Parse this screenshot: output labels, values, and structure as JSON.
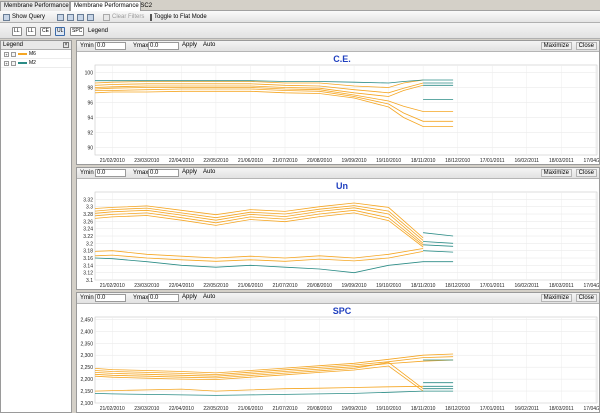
{
  "tabs": [
    {
      "label": "Membrane Performance SC1",
      "active": false
    },
    {
      "label": "Membrane Performance SC2",
      "active": true
    }
  ],
  "toolbar": {
    "show_query": "Show Query",
    "clear_filters": "Clear Filters",
    "toggle_flat": "Toggle to Flat Mode"
  },
  "toolbar2": {
    "buttons": [
      "LL",
      "LL",
      "CE",
      "UL",
      "SPC"
    ],
    "selected_index": 3,
    "legend": "Legend"
  },
  "legend": {
    "title": "Legend",
    "items": [
      {
        "label": "M6",
        "color": "#f5a623"
      },
      {
        "label": "M2",
        "color": "#2b8c86"
      }
    ]
  },
  "x_dates": [
    "21/02/2010",
    "23/03/2010",
    "22/04/2010",
    "22/05/2010",
    "21/06/2010",
    "21/07/2010",
    "20/08/2010",
    "19/09/2010",
    "19/10/2010",
    "18/11/2010",
    "18/12/2010",
    "17/01/2011",
    "16/02/2011",
    "18/03/2011",
    "17/04/2011"
  ],
  "panel_controls": {
    "ymin_label": "Ymin",
    "ymax_label": "Ymax",
    "apply": "Apply",
    "auto": "Auto",
    "maximize": "Maximize",
    "close": "Close"
  },
  "chart_data": [
    {
      "type": "line",
      "title": "C.E.",
      "ymin": "0.0",
      "ymax": "0.0",
      "ylim": [
        89,
        101
      ],
      "yticks": [
        "100",
        "98",
        "96",
        "94",
        "92",
        "90"
      ],
      "tick_values": [
        100,
        98,
        96,
        94,
        92,
        90
      ],
      "x": [
        "06/02/2010",
        "21/02/2010",
        "23/03/2010",
        "22/04/2010",
        "22/05/2010",
        "21/06/2010",
        "21/07/2010",
        "20/08/2010",
        "19/09/2010",
        "19/10/2010",
        "01/11/2010",
        "18/11/2010",
        "14/12/2010"
      ],
      "series": [
        {
          "color": "#f5a623",
          "values": [
            98.6,
            98.7,
            98.8,
            98.8,
            98.8,
            98.8,
            98.6,
            98.6,
            98.2,
            98.0,
            98.6,
            99.0,
            null
          ]
        },
        {
          "color": "#f5a623",
          "values": [
            98.3,
            98.4,
            98.5,
            98.5,
            98.5,
            98.5,
            98.3,
            98.2,
            97.7,
            97.3,
            97.9,
            98.6,
            null
          ]
        },
        {
          "color": "#f5a623",
          "values": [
            98.0,
            98.1,
            98.2,
            98.2,
            98.2,
            98.2,
            98.0,
            97.9,
            97.3,
            96.8,
            97.6,
            98.3,
            null
          ]
        },
        {
          "color": "#f5a623",
          "values": [
            97.8,
            97.9,
            98.0,
            98.0,
            98.0,
            98.0,
            97.8,
            97.7,
            97.0,
            96.2,
            95.5,
            94.8,
            94.8
          ]
        },
        {
          "color": "#f5a623",
          "values": [
            97.6,
            97.6,
            97.7,
            97.8,
            97.8,
            97.8,
            97.6,
            97.5,
            96.8,
            95.8,
            94.6,
            93.5,
            93.5
          ]
        },
        {
          "color": "#f5a623",
          "values": [
            97.3,
            97.4,
            97.4,
            97.5,
            97.5,
            97.5,
            97.3,
            97.2,
            96.6,
            95.4,
            94.0,
            92.8,
            92.8
          ]
        },
        {
          "color": "#2b8c86",
          "values": [
            98.9,
            98.9,
            98.9,
            98.9,
            98.9,
            98.9,
            98.8,
            98.8,
            98.7,
            98.6,
            98.8,
            99.0,
            99.0
          ]
        },
        {
          "color": "#2b8c86",
          "values": [
            null,
            null,
            null,
            null,
            null,
            null,
            null,
            null,
            null,
            null,
            null,
            98.6,
            98.6
          ]
        },
        {
          "color": "#2b8c86",
          "values": [
            null,
            null,
            null,
            null,
            null,
            null,
            null,
            null,
            null,
            null,
            null,
            98.3,
            98.3
          ]
        },
        {
          "color": "#2b8c86",
          "values": [
            null,
            null,
            null,
            null,
            null,
            null,
            null,
            null,
            null,
            null,
            null,
            96.4,
            96.4
          ]
        }
      ]
    },
    {
      "type": "line",
      "title": "Un",
      "ymin": "0.0",
      "ymax": "0.0",
      "ylim": [
        3.1,
        3.34
      ],
      "yticks": [
        "3.32",
        "3.3",
        "3.28",
        "3.26",
        "3.24",
        "3.22",
        "3.2",
        "3.18",
        "3.16",
        "3.14",
        "3.12",
        "3.1"
      ],
      "tick_values": [
        3.32,
        3.3,
        3.28,
        3.26,
        3.24,
        3.22,
        3.2,
        3.18,
        3.16,
        3.14,
        3.12,
        3.1
      ],
      "x": [
        "06/02/2010",
        "21/02/2010",
        "23/03/2010",
        "22/04/2010",
        "22/05/2010",
        "21/06/2010",
        "21/07/2010",
        "20/08/2010",
        "19/09/2010",
        "19/10/2010",
        "18/11/2010",
        "14/12/2010"
      ],
      "series": [
        {
          "color": "#f5a623",
          "values": [
            3.295,
            3.298,
            3.302,
            3.29,
            3.278,
            3.292,
            3.287,
            3.3,
            3.31,
            3.298,
            3.215,
            null
          ]
        },
        {
          "color": "#f5a623",
          "values": [
            3.288,
            3.292,
            3.296,
            3.283,
            3.27,
            3.285,
            3.28,
            3.293,
            3.303,
            3.288,
            3.208,
            null
          ]
        },
        {
          "color": "#f5a623",
          "values": [
            3.282,
            3.286,
            3.29,
            3.277,
            3.263,
            3.279,
            3.273,
            3.287,
            3.297,
            3.28,
            3.2,
            null
          ]
        },
        {
          "color": "#f5a623",
          "values": [
            3.275,
            3.279,
            3.283,
            3.27,
            3.256,
            3.272,
            3.266,
            3.28,
            3.29,
            3.27,
            3.195,
            null
          ]
        },
        {
          "color": "#f5a623",
          "values": [
            3.268,
            3.272,
            3.276,
            3.263,
            3.249,
            3.265,
            3.259,
            3.273,
            3.283,
            3.262,
            3.19,
            null
          ]
        },
        {
          "color": "#f5a623",
          "values": [
            3.178,
            3.18,
            3.17,
            3.165,
            3.16,
            3.165,
            3.16,
            3.166,
            3.16,
            3.17,
            3.186,
            null
          ]
        },
        {
          "color": "#f5a623",
          "values": [
            3.166,
            3.168,
            3.16,
            3.155,
            3.151,
            3.155,
            3.151,
            3.157,
            3.152,
            3.16,
            3.178,
            null
          ]
        },
        {
          "color": "#2b8c86",
          "values": [
            3.16,
            3.158,
            3.15,
            3.14,
            3.135,
            3.14,
            3.135,
            3.13,
            3.12,
            3.14,
            3.15,
            3.15
          ]
        },
        {
          "color": "#2b8c86",
          "values": [
            null,
            null,
            null,
            null,
            null,
            null,
            null,
            null,
            null,
            null,
            3.229,
            3.22
          ]
        },
        {
          "color": "#2b8c86",
          "values": [
            null,
            null,
            null,
            null,
            null,
            null,
            null,
            null,
            null,
            null,
            3.205,
            3.2
          ]
        },
        {
          "color": "#2b8c86",
          "values": [
            null,
            null,
            null,
            null,
            null,
            null,
            null,
            null,
            null,
            null,
            3.196,
            3.192
          ]
        },
        {
          "color": "#2b8c86",
          "values": [
            null,
            null,
            null,
            null,
            null,
            null,
            null,
            null,
            null,
            null,
            3.18,
            3.176
          ]
        }
      ]
    },
    {
      "type": "line",
      "title": "SPC",
      "ymin": "0.0",
      "ymax": "0.0",
      "ylim": [
        2.1,
        2.46
      ],
      "yticks": [
        "2,450",
        "2,400",
        "2,350",
        "2,300",
        "2,250",
        "2,200",
        "2,150",
        "2,100"
      ],
      "tick_values": [
        2.45,
        2.4,
        2.35,
        2.3,
        2.25,
        2.2,
        2.15,
        2.1
      ],
      "x": [
        "06/02/2010",
        "21/02/2010",
        "23/03/2010",
        "22/04/2010",
        "22/05/2010",
        "21/06/2010",
        "21/07/2010",
        "20/08/2010",
        "19/09/2010",
        "19/10/2010",
        "18/11/2010",
        "14/12/2010"
      ],
      "series": [
        {
          "color": "#f5a623",
          "values": [
            2.245,
            2.24,
            2.236,
            2.232,
            2.226,
            2.236,
            2.246,
            2.256,
            2.266,
            2.283,
            2.3,
            2.305
          ]
        },
        {
          "color": "#f5a623",
          "values": [
            2.236,
            2.232,
            2.228,
            2.224,
            2.219,
            2.229,
            2.239,
            2.249,
            2.259,
            2.273,
            2.29,
            2.294
          ]
        },
        {
          "color": "#f5a623",
          "values": [
            2.228,
            2.224,
            2.22,
            2.216,
            2.212,
            2.222,
            2.232,
            2.242,
            2.252,
            2.265,
            2.275,
            2.28
          ]
        },
        {
          "color": "#f5a623",
          "values": [
            2.22,
            2.216,
            2.212,
            2.208,
            2.205,
            2.215,
            2.225,
            2.235,
            2.245,
            2.27,
            2.16,
            null
          ]
        },
        {
          "color": "#f5a623",
          "values": [
            2.212,
            2.208,
            2.204,
            2.2,
            2.198,
            2.208,
            2.218,
            2.228,
            2.238,
            2.255,
            2.15,
            null
          ]
        },
        {
          "color": "#f5a623",
          "values": [
            2.15,
            2.152,
            2.155,
            2.158,
            2.15,
            2.155,
            2.16,
            2.162,
            2.165,
            2.168,
            2.17,
            null
          ]
        },
        {
          "color": "#2b8c86",
          "values": [
            2.14,
            2.138,
            2.136,
            2.134,
            2.132,
            2.134,
            2.136,
            2.138,
            2.14,
            2.145,
            2.15,
            2.15
          ]
        },
        {
          "color": "#2b8c86",
          "values": [
            null,
            null,
            null,
            null,
            null,
            null,
            null,
            null,
            null,
            null,
            2.185,
            2.185
          ]
        },
        {
          "color": "#2b8c86",
          "values": [
            null,
            null,
            null,
            null,
            null,
            null,
            null,
            null,
            null,
            null,
            2.17,
            2.17
          ]
        },
        {
          "color": "#2b8c86",
          "values": [
            null,
            null,
            null,
            null,
            null,
            null,
            null,
            null,
            null,
            null,
            2.16,
            2.16
          ]
        },
        {
          "color": "#2b8c86",
          "values": [
            null,
            null,
            null,
            null,
            null,
            null,
            null,
            null,
            null,
            null,
            2.28,
            2.28
          ]
        }
      ]
    }
  ]
}
